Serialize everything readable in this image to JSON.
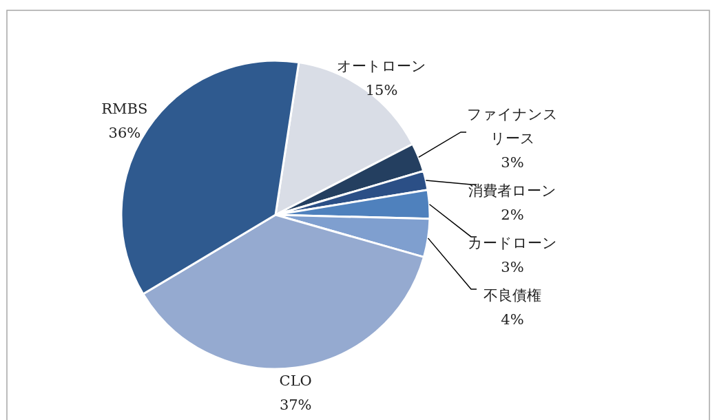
{
  "chart_data": {
    "type": "pie",
    "categories": [
      "オートローン",
      "ファイナンスリース",
      "消費者ローン",
      "カードローン",
      "不良債権",
      "CLO",
      "RMBS"
    ],
    "values": [
      15,
      3,
      2,
      3,
      4,
      37,
      36
    ],
    "colors": [
      "#d9dde6",
      "#243f60",
      "#2b4f86",
      "#4f81bd",
      "#7f9fcf",
      "#95aad0",
      "#2f5a8f"
    ],
    "value_labels": [
      "15%",
      "3%",
      "2%",
      "3%",
      "4%",
      "37%",
      "36%"
    ]
  }
}
